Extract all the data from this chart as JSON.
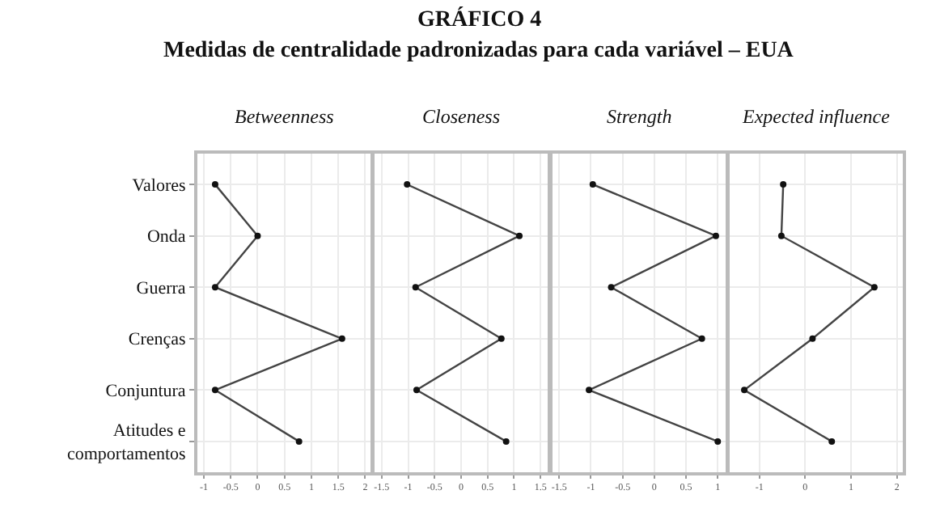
{
  "chart_data": [
    {
      "type": "line",
      "title": "Betweenness",
      "annotations": [
        "GRÁFICO 4",
        "Medidas de centralidade padronizadas para cada variável – EUA"
      ],
      "orientation": "horizontal",
      "categories": [
        "Valores",
        "Onda",
        "Guerra",
        "Crenças",
        "Conjuntura",
        "Atitudes e comportamentos"
      ],
      "series": [
        {
          "color": "#444444",
          "values": [
            -0.79,
            0,
            -0.79,
            1.57,
            -0.79,
            0.77
          ]
        }
      ],
      "xlim": [
        -1.12,
        2.1
      ],
      "xticks": [
        -1,
        -0.5,
        0,
        0.5,
        1,
        1.5,
        2
      ],
      "grid": true,
      "marker": "circle"
    },
    {
      "type": "line",
      "title": "Closeness",
      "orientation": "horizontal",
      "categories": [
        "Valores",
        "Onda",
        "Guerra",
        "Crenças",
        "Conjuntura",
        "Atitudes e comportamentos"
      ],
      "series": [
        {
          "color": "#444444",
          "values": [
            -1.02,
            1.1,
            -0.86,
            0.76,
            -0.84,
            0.85
          ]
        }
      ],
      "xlim": [
        -1.63,
        1.64
      ],
      "xticks": [
        -1.5,
        -1,
        -0.5,
        0,
        0.5,
        1,
        1.5
      ],
      "grid": true,
      "marker": "circle",
      "tick_labels": "x"
    },
    {
      "type": "line",
      "title": "Strength",
      "orientation": "horizontal",
      "categories": [
        "Valores",
        "Onda",
        "Guerra",
        "Crenças",
        "Conjuntura",
        "Atitudes e comportamentos"
      ],
      "series": [
        {
          "color": "#444444",
          "values": [
            -0.97,
            0.97,
            -0.68,
            0.75,
            -1.03,
            1.0
          ]
        }
      ],
      "xlim": [
        -1.61,
        1.12
      ],
      "xticks": [
        -1.5,
        -1,
        -0.5,
        0,
        0.5,
        1
      ],
      "grid": true,
      "marker": "circle",
      "tick_labels": "x"
    },
    {
      "type": "line",
      "title": "Expected influence",
      "orientation": "horizontal",
      "categories": [
        "Valores",
        "Onda",
        "Guerra",
        "Crenças",
        "Conjuntura",
        "Atitudes e comportamentos"
      ],
      "series": [
        {
          "color": "#444444",
          "values": [
            -0.48,
            -0.52,
            1.51,
            0.16,
            -1.33,
            0.58
          ]
        }
      ],
      "xlim": [
        -1.65,
        2.13
      ],
      "xticks": [
        -1,
        0,
        1,
        2
      ],
      "grid": true,
      "marker": "circle",
      "tick_labels": "x"
    }
  ]
}
